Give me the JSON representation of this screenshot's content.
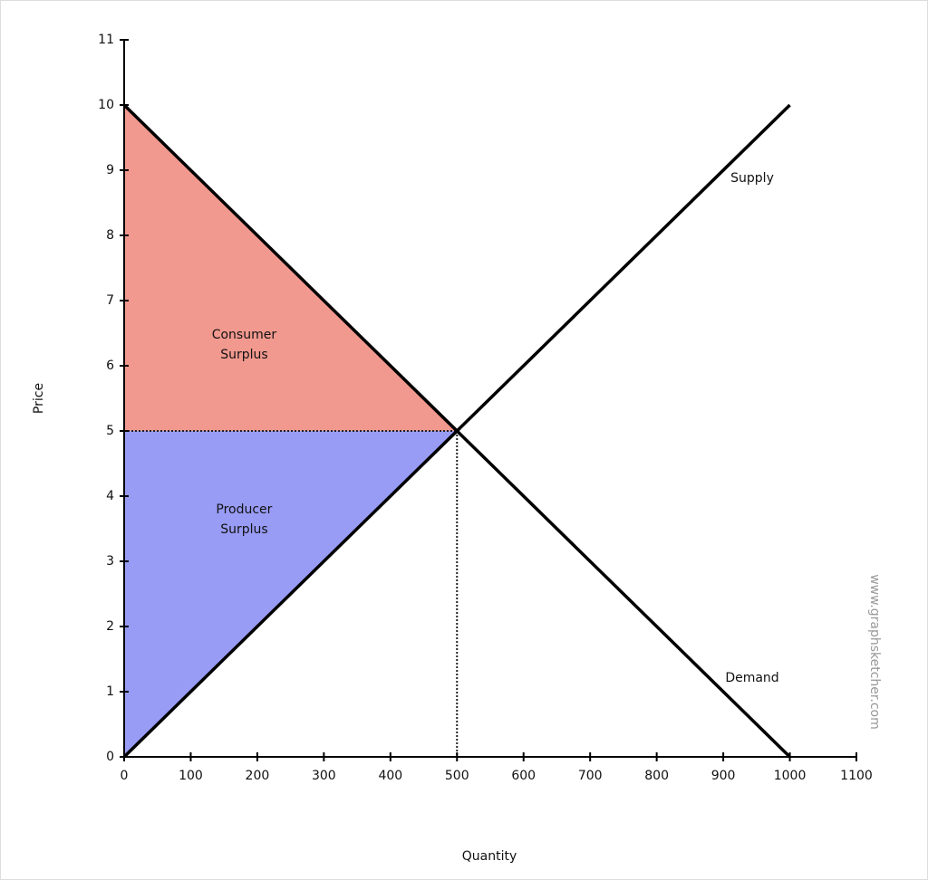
{
  "chart_data": {
    "type": "line",
    "xlabel": "Quantity",
    "ylabel": "Price",
    "xlim": [
      0,
      1100
    ],
    "ylim": [
      0,
      11
    ],
    "xticks": [
      0,
      100,
      200,
      300,
      400,
      500,
      600,
      700,
      800,
      900,
      1000,
      1100
    ],
    "yticks": [
      0,
      1,
      2,
      3,
      4,
      5,
      6,
      7,
      8,
      9,
      10,
      11
    ],
    "series": [
      {
        "name": "Supply",
        "color": "#000000",
        "x": [
          0,
          1000
        ],
        "values": [
          0,
          10
        ]
      },
      {
        "name": "Demand",
        "color": "#000000",
        "x": [
          0,
          1000
        ],
        "values": [
          10,
          0
        ]
      }
    ],
    "areas": [
      {
        "label": [
          "Consumer",
          "Surplus"
        ],
        "color": "#f2998f",
        "x": [
          0,
          500,
          0
        ],
        "values": [
          10,
          5,
          5
        ]
      },
      {
        "label": [
          "Producer",
          "Surplus"
        ],
        "color": "#989cf5",
        "x": [
          0,
          500,
          0
        ],
        "values": [
          0,
          5,
          5
        ]
      }
    ],
    "equilibrium": {
      "x": 500,
      "y": 5
    },
    "watermark": "www.graphsketcher.com"
  }
}
